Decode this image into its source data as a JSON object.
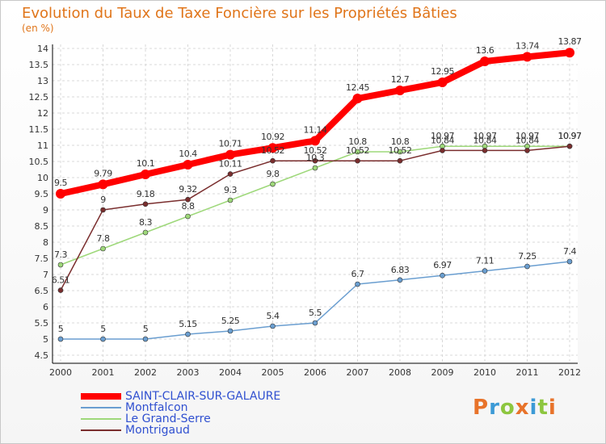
{
  "title": "Evolution du Taux de Taxe Foncière sur les Propriétés Bâties",
  "subtitle": "(en %)",
  "logo": {
    "letters": [
      "P",
      "r",
      "o",
      "x",
      "i",
      "t",
      "i"
    ],
    "colors": [
      "#e8732a",
      "#3c9ad6",
      "#8dc63f",
      "#e8732a",
      "#3c9ad6",
      "#8dc63f",
      "#e8732a"
    ]
  },
  "chart_data": {
    "type": "line",
    "title": "Evolution du Taux de Taxe Foncière sur les Propriétés Bâties",
    "ylabel": "(en %)",
    "xlabel": "",
    "x": [
      "2000",
      "2001",
      "2002",
      "2003",
      "2004",
      "2005",
      "2006",
      "2007",
      "2008",
      "2009",
      "2010",
      "2011",
      "2012"
    ],
    "ylim": [
      4.5,
      14
    ],
    "yticks": [
      "4.5",
      "5",
      "5.5",
      "6",
      "6.5",
      "7",
      "7.5",
      "8",
      "8.5",
      "9",
      "9.5",
      "10",
      "10.5",
      "11",
      "11.5",
      "12",
      "12.5",
      "13",
      "13.5",
      "14"
    ],
    "series": [
      {
        "name": "SAINT-CLAIR-SUR-GALAURE",
        "color": "#ff0000",
        "values": [
          9.5,
          9.79,
          10.1,
          10.4,
          10.71,
          10.92,
          11.14,
          12.45,
          12.7,
          12.95,
          13.6,
          13.74,
          13.87
        ],
        "labels": [
          "9.5",
          "9.79",
          "10.1",
          "10.4",
          "10.71",
          "10.92",
          "11.14",
          "12.45",
          "12.7",
          "12.95",
          "13.6",
          "13.74",
          "13.87"
        ]
      },
      {
        "name": "Montfalcon",
        "color": "#6a9ed0",
        "values": [
          5,
          5,
          5,
          5.15,
          5.25,
          5.4,
          5.5,
          6.7,
          6.83,
          6.97,
          7.11,
          7.25,
          7.4
        ],
        "labels": [
          "5",
          "5",
          "5",
          "5.15",
          "5.25",
          "5.4",
          "5.5",
          "6.7",
          "6.83",
          "6.97",
          "7.11",
          "7.25",
          "7.4"
        ]
      },
      {
        "name": "Le Grand-Serre",
        "color": "#9ed87a",
        "values": [
          7.3,
          7.8,
          8.3,
          8.8,
          9.3,
          9.8,
          10.3,
          10.8,
          10.8,
          10.97,
          10.97,
          10.97,
          10.97
        ],
        "labels": [
          "7.3",
          "7.8",
          "8.3",
          "8.8",
          "9.3",
          "9.8",
          "10.3",
          "10.8",
          "10.8",
          "10.97",
          "10.97",
          "10.97",
          "10.97"
        ]
      },
      {
        "name": "Montrigaud",
        "color": "#7a2e2e",
        "values": [
          6.51,
          9,
          9.18,
          9.32,
          10.11,
          10.52,
          10.52,
          10.52,
          10.52,
          10.84,
          10.84,
          10.84,
          10.97
        ],
        "labels": [
          "6.51",
          "9",
          "9.18",
          "9.32",
          "10.11",
          "10.52",
          "10.52",
          "10.52",
          "10.52",
          "10.84",
          "10.84",
          "10.84",
          "10.97"
        ]
      }
    ]
  }
}
